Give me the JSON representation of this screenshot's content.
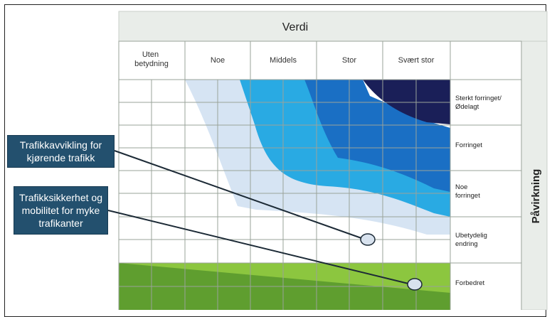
{
  "header": {
    "title": "Verdi"
  },
  "columns": [
    "Uten\nbetydning",
    "Noe",
    "Middels",
    "Stor",
    "Svært stor"
  ],
  "side_title": "Påvirkning",
  "rows": [
    "Sterkt forringet/\nØdelagt",
    "Forringet",
    "Noe\nforringet",
    "Ubetydelig\nendring",
    "Forbedret"
  ],
  "callouts": [
    {
      "text": "Trafikkavvikling for kjørende trafikk"
    },
    {
      "text": "Trafikksikkerhet og mobilitet for myke trafikanter"
    }
  ],
  "colors": {
    "header_bg": "#e9ede9",
    "very_light_blue": "#d6e4f3",
    "light_blue": "#29aae3",
    "mid_blue": "#1a6fc4",
    "dark_blue": "#1a1f58",
    "green_light": "#8cc63f",
    "green_dark": "#5f9e2f",
    "callout_bg": "#23506e"
  }
}
